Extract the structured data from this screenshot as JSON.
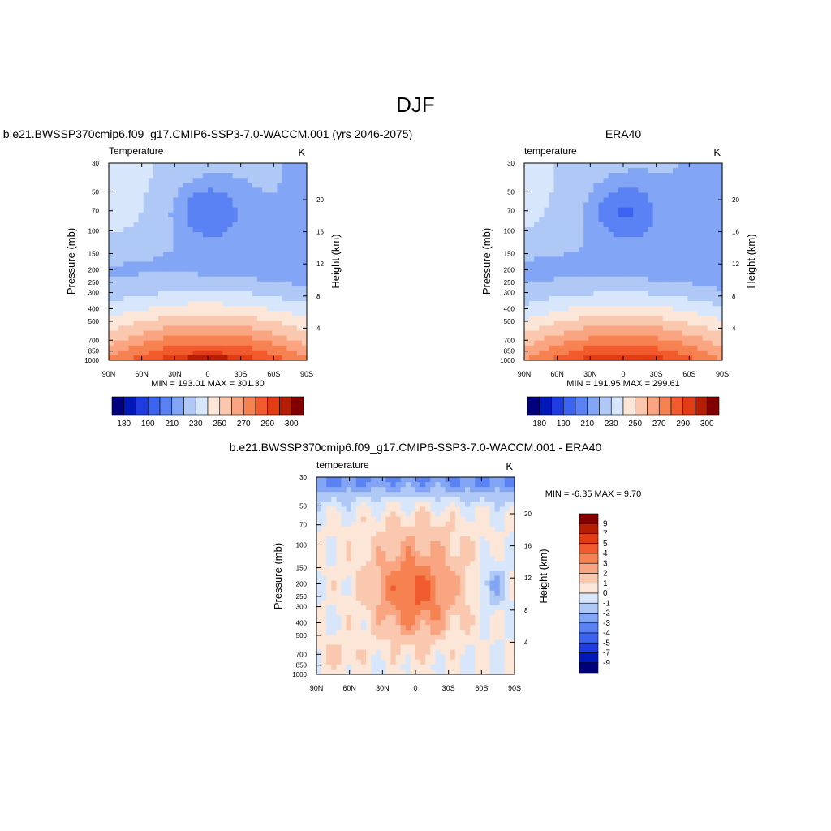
{
  "page_title": "DJF",
  "colors": {
    "abs_palette": [
      "#00007e",
      "#0019b8",
      "#1e3ce0",
      "#3c64f0",
      "#5a82f5",
      "#82a5f5",
      "#afc8f5",
      "#d7e6fa",
      "#fce6d7",
      "#fac8af",
      "#faa582",
      "#f58250",
      "#f05a2d",
      "#e13c14",
      "#b41e05",
      "#820000"
    ],
    "diff_palette": [
      "#00007e",
      "#0019b8",
      "#1e3ce0",
      "#3c64f0",
      "#5a82f5",
      "#82a5f5",
      "#afc8f5",
      "#d7e6fa",
      "#fce6d7",
      "#fac8af",
      "#faa582",
      "#f58250",
      "#f05a2d",
      "#e13c14",
      "#b41e05",
      "#820000"
    ]
  },
  "chart_data": [
    {
      "type": "heatmap",
      "title": "b.e21.BWSSP370cmip6.f09_g17.CMIP6-SSP3-7.0-WACCM.001 (yrs 2046-2075)",
      "left_label": "Temperature",
      "right_label": "K",
      "ylabel": "Pressure (mb)",
      "y2label": "Height (km)",
      "stats": "MIN = 193.01  MAX = 301.30",
      "xticks": [
        "90N",
        "60N",
        "30N",
        "0",
        "30S",
        "60S",
        "90S"
      ],
      "yticks": [
        "30",
        "50",
        "70",
        "100",
        "150",
        "200",
        "250",
        "300",
        "400",
        "500",
        "700",
        "850",
        "1000"
      ],
      "y2ticks": [
        "20",
        "16",
        "12",
        "8",
        "4"
      ],
      "ylim": [
        1000,
        30
      ],
      "xlim": [
        "90N",
        "90S"
      ],
      "min": 193.01,
      "max": 301.3,
      "legend_labels": [
        "180",
        "190",
        "210",
        "230",
        "250",
        "270",
        "290",
        "300"
      ]
    },
    {
      "type": "heatmap",
      "title": "ERA40",
      "left_label": "temperature",
      "right_label": "K",
      "ylabel": "Pressure (mb)",
      "y2label": "Height (km)",
      "stats": "MIN = 191.95  MAX = 299.61",
      "xticks": [
        "90N",
        "60N",
        "30N",
        "0",
        "30S",
        "60S",
        "90S"
      ],
      "yticks": [
        "30",
        "50",
        "70",
        "100",
        "150",
        "200",
        "250",
        "300",
        "400",
        "500",
        "700",
        "850",
        "1000"
      ],
      "y2ticks": [
        "20",
        "16",
        "12",
        "8",
        "4"
      ],
      "ylim": [
        1000,
        30
      ],
      "xlim": [
        "90N",
        "90S"
      ],
      "min": 191.95,
      "max": 299.61,
      "legend_labels": [
        "180",
        "190",
        "210",
        "230",
        "250",
        "270",
        "290",
        "300"
      ]
    },
    {
      "type": "heatmap",
      "title": "b.e21.BWSSP370cmip6.f09_g17.CMIP6-SSP3-7.0-WACCM.001 - ERA40",
      "left_label": "temperature",
      "right_label": "K",
      "ylabel": "Pressure (mb)",
      "y2label": "Height (km)",
      "stats": "MIN =  -6.35  MAX =   9.70",
      "xticks": [
        "90N",
        "60N",
        "30N",
        "0",
        "30S",
        "60S",
        "90S"
      ],
      "yticks": [
        "30",
        "50",
        "70",
        "100",
        "150",
        "200",
        "250",
        "300",
        "400",
        "500",
        "700",
        "850",
        "1000"
      ],
      "y2ticks": [
        "20",
        "16",
        "12",
        "8",
        "4"
      ],
      "ylim": [
        1000,
        30
      ],
      "xlim": [
        "90N",
        "90S"
      ],
      "min": -6.35,
      "max": 9.7,
      "legend_labels": [
        "9",
        "7",
        "5",
        "4",
        "3",
        "2",
        "1",
        "0",
        "-1",
        "-2",
        "-3",
        "-4",
        "-5",
        "-7",
        "-9"
      ]
    }
  ]
}
